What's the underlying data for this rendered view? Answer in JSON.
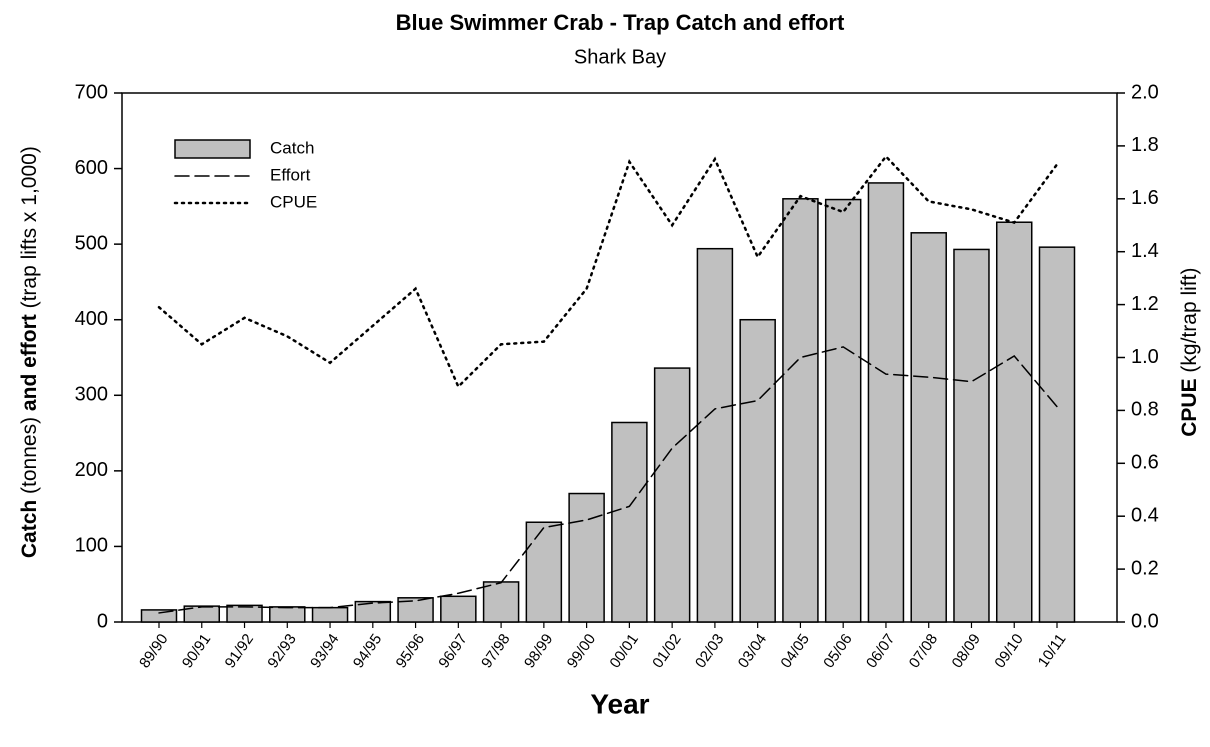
{
  "chart_data": {
    "type": "bar",
    "title": "Blue Swimmer Crab - Trap Catch and effort",
    "subtitle": "Shark Bay",
    "x_label": "Year",
    "y_label": [
      "Catch",
      " (tonnes) ",
      "and effort",
      " (trap lifts x 1,000)"
    ],
    "y2_label": [
      "CPUE",
      " (kg/trap lift)"
    ],
    "categories": [
      "89/90",
      "90/91",
      "91/92",
      "92/93",
      "93/94",
      "94/95",
      "95/96",
      "96/97",
      "97/98",
      "98/99",
      "99/00",
      "00/01",
      "01/02",
      "02/03",
      "03/04",
      "04/05",
      "05/06",
      "06/07",
      "07/08",
      "08/09",
      "09/10",
      "10/11"
    ],
    "series": [
      {
        "name": "Catch",
        "type": "bar",
        "color": "#c0c0c0",
        "values": [
          16,
          21,
          22,
          20,
          19,
          27,
          32,
          34,
          53,
          132,
          170,
          264,
          336,
          494,
          400,
          560,
          559,
          581,
          515,
          493,
          529,
          496
        ]
      },
      {
        "name": "Effort",
        "type": "line",
        "dash": "dashed",
        "color": "#000000",
        "values": [
          12,
          20,
          20,
          19,
          19,
          25,
          28,
          38,
          52,
          125,
          135,
          153,
          230,
          282,
          293,
          350,
          364,
          328,
          324,
          318,
          352,
          285
        ]
      },
      {
        "name": "CPUE",
        "type": "line",
        "dash": "dotted",
        "color": "#000000",
        "axis": "y2",
        "values": [
          1.19,
          1.05,
          1.15,
          1.08,
          0.98,
          1.12,
          1.26,
          0.89,
          1.05,
          1.06,
          1.26,
          1.74,
          1.5,
          1.75,
          1.38,
          1.61,
          1.55,
          1.76,
          1.59,
          1.56,
          1.51,
          1.73
        ]
      }
    ],
    "ylim": [
      0,
      700
    ],
    "yticks": [
      0,
      100,
      200,
      300,
      400,
      500,
      600,
      700
    ],
    "y2lim": [
      0,
      2
    ],
    "y2ticks": [
      {
        "value": 0,
        "label": "0.0"
      },
      {
        "value": 0.2,
        "label": "0.2"
      },
      {
        "value": 0.4,
        "label": "0.4"
      },
      {
        "value": 0.6,
        "label": "0.6"
      },
      {
        "value": 0.8,
        "label": "0.8"
      },
      {
        "value": 1,
        "label": "1.0"
      },
      {
        "value": 1.2,
        "label": "1.2"
      },
      {
        "value": 1.4,
        "label": "1.4"
      },
      {
        "value": 1.6,
        "label": "1.6"
      },
      {
        "value": 1.8,
        "label": "1.8"
      },
      {
        "value": 2,
        "label": "2.0"
      }
    ],
    "grid": false,
    "legend": "upper left"
  }
}
